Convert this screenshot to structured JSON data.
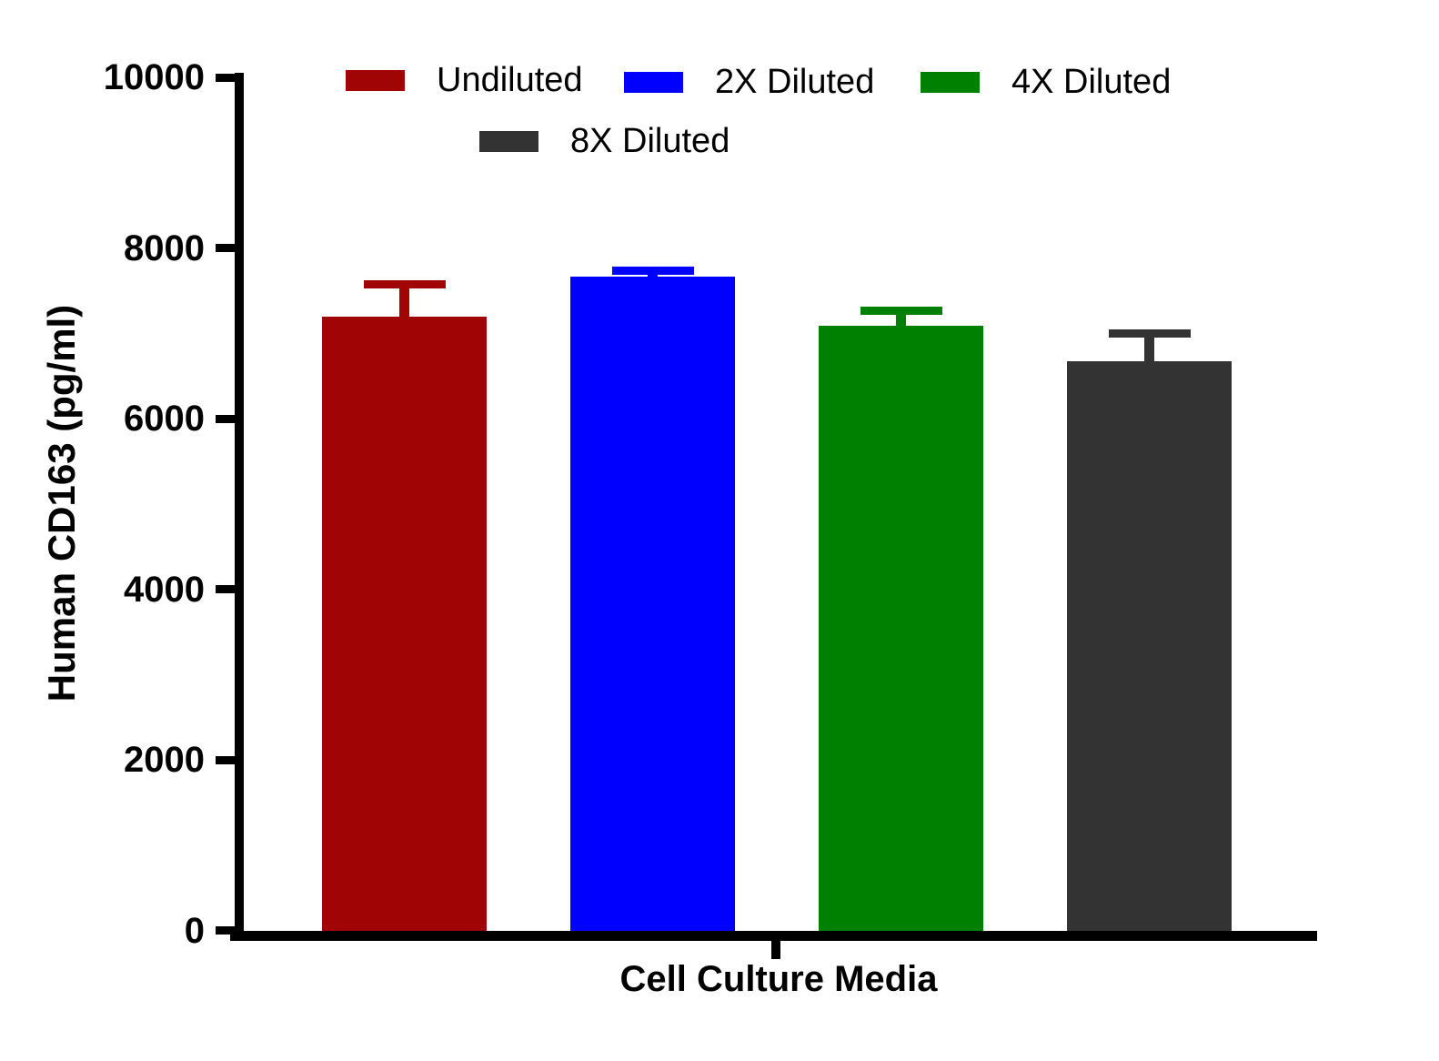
{
  "chart_data": {
    "type": "bar",
    "title": "",
    "xlabel": "Cell Culture Media",
    "ylabel": "Human CD163 (pg/ml)",
    "ylim": [
      0,
      10000
    ],
    "yticks": [
      0,
      2000,
      4000,
      6000,
      8000,
      10000
    ],
    "grid": false,
    "legend_position": "top",
    "error_bars": "upper-only",
    "categories": [
      "Undiluted",
      "2X Diluted",
      "4X Diluted",
      "8X Diluted"
    ],
    "series": [
      {
        "name": "Undiluted",
        "value": 7200,
        "error_plus": 370,
        "color": "#A00404"
      },
      {
        "name": "2X Diluted",
        "value": 7665,
        "error_plus": 65,
        "color": "#0000FF"
      },
      {
        "name": "4X Diluted",
        "value": 7090,
        "error_plus": 170,
        "color": "#008000"
      },
      {
        "name": "8X Diluted",
        "value": 6670,
        "error_plus": 330,
        "color": "#333333"
      }
    ],
    "axis_color": "#000000",
    "text_color": "#000000",
    "background_color": "#FFFFFF"
  }
}
